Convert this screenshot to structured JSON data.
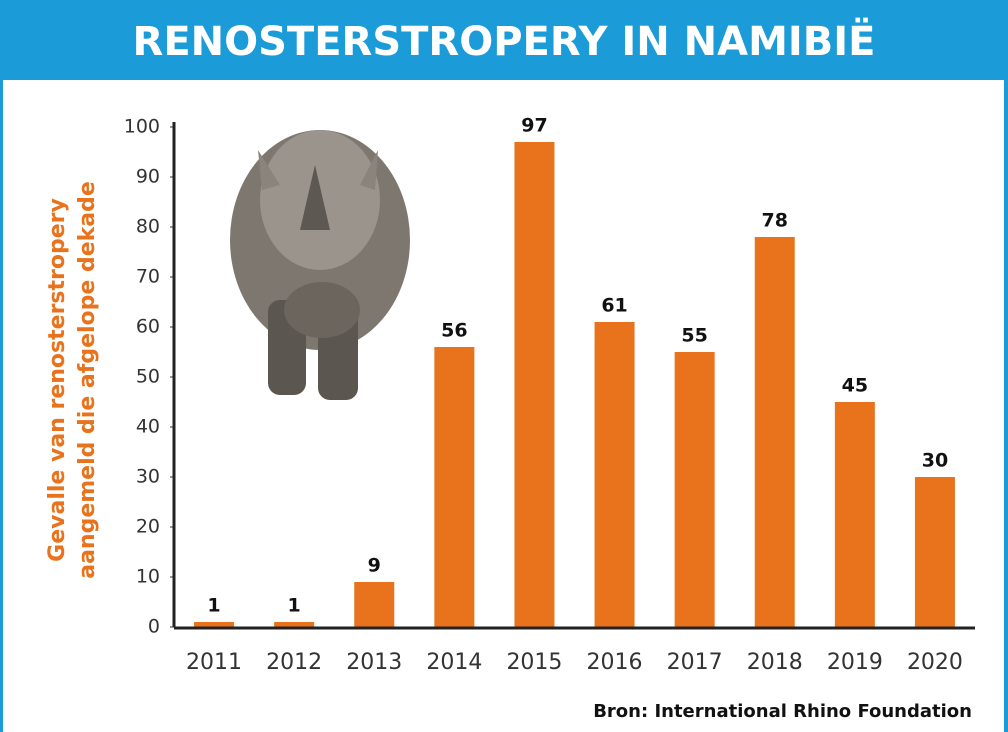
{
  "chart_data": {
    "type": "bar",
    "title": "RENOSTERSTROPERY IN NAMIBIË",
    "ylabel": [
      "Gevalle van renosterstropery",
      "aangemeld die afgelope dekade"
    ],
    "source": "Bron: International Rhino Foundation",
    "categories": [
      "2011",
      "2012",
      "2013",
      "2014",
      "2015",
      "2016",
      "2017",
      "2018",
      "2019",
      "2020"
    ],
    "values": [
      1,
      1,
      9,
      56,
      97,
      61,
      55,
      78,
      45,
      30
    ],
    "color": "#e8731c",
    "ylim": [
      0,
      100
    ],
    "yticks": [
      0,
      10,
      20,
      30,
      40,
      50,
      60,
      70,
      80,
      90,
      100
    ]
  }
}
